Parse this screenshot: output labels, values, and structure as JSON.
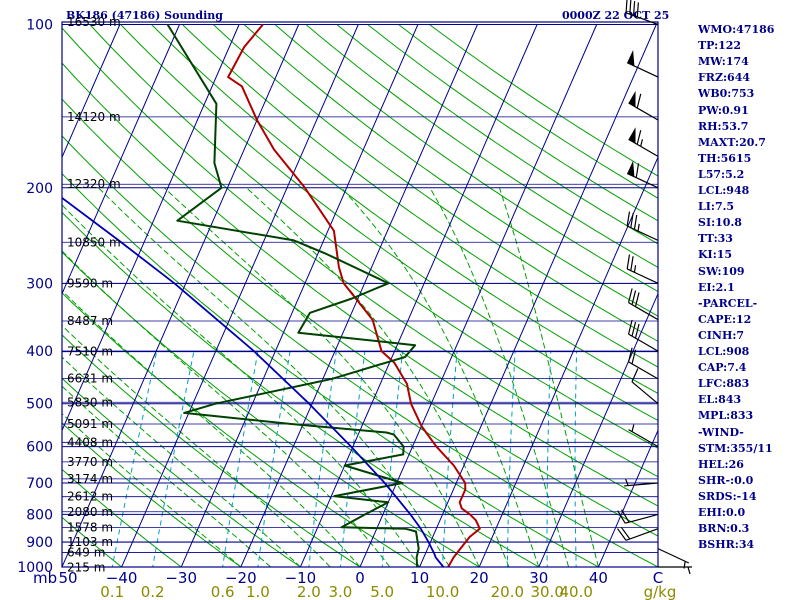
{
  "header": {
    "station": "BK186 (47186) Sounding",
    "datetime": "0000Z 22 OCT 25"
  },
  "indices": [
    "WMO:47186",
    "TP:122",
    "MW:174",
    "FRZ:644",
    "WB0:753",
    "PW:0.91",
    "RH:53.7",
    "MAXT:20.7",
    "TH:5615",
    "L57:5.2",
    "LCL:948",
    "LI:7.5",
    "SI:10.8",
    "TT:33",
    "KI:15",
    "SW:109",
    "EI:2.1",
    "-PARCEL-",
    "CAPE:12",
    "CINH:7",
    "LCL:908",
    "CAP:7.4",
    "LFC:883",
    "EL:843",
    "MPL:833",
    "-WIND-",
    "STM:355/11",
    "HEL:26",
    "SHR-:0.0",
    "SRDS:-14",
    "EHI:0.0",
    "BRN:0.3",
    "BSHR:34"
  ],
  "colors": {
    "frame": "#00008b",
    "isobar": "#00008b",
    "isotherm": "#00008b",
    "dry_adiabat": "#00a000",
    "moist_adiabat": "#00a000",
    "mixing_ratio": "#00a0c0",
    "temperature": "#b00000",
    "dewpoint": "#004000",
    "parcel": "#0000b0",
    "wind_barb": "#000000"
  },
  "chart_data": {
    "type": "skew-t log-p",
    "ylim": [
      1000,
      100
    ],
    "xlim": [
      -50,
      50
    ],
    "y_unit": "mb",
    "y_ticks": [
      {
        "p": 100,
        "label": "100"
      },
      {
        "p": 200,
        "label": "200"
      },
      {
        "p": 300,
        "label": "300"
      },
      {
        "p": 400,
        "label": "400"
      },
      {
        "p": 500,
        "label": "500"
      },
      {
        "p": 600,
        "label": "600"
      },
      {
        "p": 700,
        "label": "700"
      },
      {
        "p": 800,
        "label": "800"
      },
      {
        "p": 900,
        "label": "900"
      },
      {
        "p": 1000,
        "label": "1000"
      }
    ],
    "x_ticks": [
      {
        "t": -50,
        "label": "50"
      },
      {
        "t": -40,
        "label": "−40"
      },
      {
        "t": -30,
        "label": "−30"
      },
      {
        "t": -20,
        "label": "−20"
      },
      {
        "t": -10,
        "label": "−10"
      },
      {
        "t": 0,
        "label": "0"
      },
      {
        "t": 10,
        "label": "10"
      },
      {
        "t": 20,
        "label": "20"
      },
      {
        "t": 30,
        "label": "30"
      },
      {
        "t": 40,
        "label": "40"
      },
      {
        "t": 50,
        "label": "C"
      }
    ],
    "y_unit_label": "mb",
    "mixing_ratio_label": "g/kg",
    "mixing_ratio_ticks": [
      {
        "w": 0.1,
        "label": "0.1"
      },
      {
        "w": 0.2,
        "label": "0.2"
      },
      {
        "w": 0.6,
        "label": "0.6"
      },
      {
        "w": 1.0,
        "label": "1.0"
      },
      {
        "w": 2.0,
        "label": "2.0"
      },
      {
        "w": 3.0,
        "label": "3.0"
      },
      {
        "w": 5.0,
        "label": "5.0"
      },
      {
        "w": 10.0,
        "label": "10.0"
      },
      {
        "w": 20.0,
        "label": "20.0"
      },
      {
        "w": 30.0,
        "label": "30.0"
      },
      {
        "w": 40.0,
        "label": "40.0"
      }
    ],
    "height_labels": [
      {
        "p": 1002,
        "label": "215 m"
      },
      {
        "p": 940,
        "label": "649 m"
      },
      {
        "p": 899,
        "label": "1103 m"
      },
      {
        "p": 846,
        "label": "1578 m"
      },
      {
        "p": 791,
        "label": "2080 m"
      },
      {
        "p": 742,
        "label": "2612 m"
      },
      {
        "p": 688,
        "label": "3174 m"
      },
      {
        "p": 640,
        "label": "3770 m"
      },
      {
        "p": 589,
        "label": "4408 m"
      },
      {
        "p": 545,
        "label": "5091 m"
      },
      {
        "p": 497,
        "label": "5830 m"
      },
      {
        "p": 449,
        "label": "6631 m"
      },
      {
        "p": 401,
        "label": "7510 m"
      },
      {
        "p": 352,
        "label": "8487 m"
      },
      {
        "p": 300,
        "label": "9590 m"
      },
      {
        "p": 252,
        "label": "10850 m"
      },
      {
        "p": 197,
        "label": "12320 m"
      },
      {
        "p": 148,
        "label": "14120 m"
      },
      {
        "p": 99,
        "label": "16530 m"
      }
    ],
    "series": [
      {
        "key": "temperature",
        "points": [
          [
            1000,
            14.8
          ],
          [
            960,
            15.0
          ],
          [
            925,
            15.5
          ],
          [
            880,
            16.2
          ],
          [
            850,
            17.3
          ],
          [
            820,
            16.0
          ],
          [
            800,
            14.6
          ],
          [
            780,
            12.8
          ],
          [
            760,
            12.0
          ],
          [
            720,
            12.0
          ],
          [
            700,
            11.5
          ],
          [
            650,
            8.3
          ],
          [
            600,
            4.0
          ],
          [
            550,
            0.0
          ],
          [
            500,
            -3.4
          ],
          [
            460,
            -5.5
          ],
          [
            420,
            -9.2
          ],
          [
            400,
            -12.2
          ],
          [
            350,
            -16.0
          ],
          [
            300,
            -23.5
          ],
          [
            280,
            -25.5
          ],
          [
            240,
            -29.0
          ],
          [
            200,
            -37.0
          ],
          [
            170,
            -45.0
          ],
          [
            150,
            -50.0
          ],
          [
            130,
            -55.0
          ],
          [
            125,
            -58.0
          ],
          [
            110,
            -57.5
          ],
          [
            100,
            -56.0
          ]
        ]
      },
      {
        "key": "dewpoint",
        "points": [
          [
            1000,
            9.6
          ],
          [
            960,
            8.8
          ],
          [
            925,
            8.5
          ],
          [
            860,
            6.8
          ],
          [
            850,
            4.8
          ],
          [
            845,
            -6.0
          ],
          [
            800,
            -3.0
          ],
          [
            760,
            0.0
          ],
          [
            740,
            -9.5
          ],
          [
            700,
            1.0
          ],
          [
            650,
            -10.0
          ],
          [
            620,
            -1.0
          ],
          [
            600,
            -1.5
          ],
          [
            570,
            -4.0
          ],
          [
            565,
            -5.4
          ],
          [
            545,
            -22.0
          ],
          [
            520,
            -40.8
          ],
          [
            500,
            -36.2
          ],
          [
            450,
            -18.5
          ],
          [
            410,
            -7.8
          ],
          [
            390,
            -7.0
          ],
          [
            370,
            -27.5
          ],
          [
            340,
            -27.0
          ],
          [
            320,
            -21.0
          ],
          [
            300,
            -16.0
          ],
          [
            265,
            -28.5
          ],
          [
            250,
            -35.0
          ],
          [
            230,
            -56.0
          ],
          [
            200,
            -51.0
          ],
          [
            180,
            -54.0
          ],
          [
            140,
            -58.0
          ],
          [
            100,
            -72.0
          ]
        ]
      },
      {
        "key": "parcel",
        "points": [
          [
            1000,
            14.0
          ],
          [
            960,
            12.0
          ],
          [
            948,
            11.6
          ],
          [
            900,
            9.7
          ],
          [
            850,
            7.4
          ],
          [
            800,
            4.6
          ],
          [
            700,
            -2.0
          ],
          [
            600,
            -10.3
          ],
          [
            500,
            -20.5
          ],
          [
            400,
            -33.6
          ],
          [
            300,
            -51.9
          ],
          [
            250,
            -64.4
          ],
          [
            200,
            -80.0
          ],
          [
            165,
            -93.5
          ]
        ]
      }
    ],
    "wind_barbs": [
      {
        "p": 1000,
        "dir": 90,
        "spd": 4
      },
      {
        "p": 925,
        "dir": 115,
        "spd": 6
      },
      {
        "p": 850,
        "dir": 250,
        "spd": 20
      },
      {
        "p": 800,
        "dir": 255,
        "spd": 22
      },
      {
        "p": 700,
        "dir": 265,
        "spd": 4
      },
      {
        "p": 600,
        "dir": 300,
        "spd": 6
      },
      {
        "p": 500,
        "dir": 310,
        "spd": 12
      },
      {
        "p": 450,
        "dir": 300,
        "spd": 22
      },
      {
        "p": 400,
        "dir": 300,
        "spd": 32
      },
      {
        "p": 350,
        "dir": 300,
        "spd": 30
      },
      {
        "p": 300,
        "dir": 295,
        "spd": 26
      },
      {
        "p": 250,
        "dir": 295,
        "spd": 34
      },
      {
        "p": 200,
        "dir": 295,
        "spd": 62
      },
      {
        "p": 175,
        "dir": 300,
        "spd": 66
      },
      {
        "p": 150,
        "dir": 300,
        "spd": 60
      },
      {
        "p": 125,
        "dir": 295,
        "spd": 48
      },
      {
        "p": 100,
        "dir": 290,
        "spd": 40
      }
    ]
  }
}
